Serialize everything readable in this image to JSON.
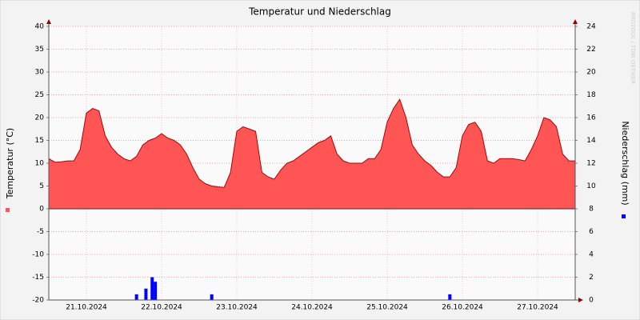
{
  "chart_data": {
    "type": "area",
    "title": "Temperatur und Niederschlag",
    "y_label": "Temperatur (°C)",
    "y2_label": "Niederschlag (mm)",
    "watermark": "RRDTOOL / TOBI OETIKER",
    "xlim": [
      0,
      168
    ],
    "xticks": [
      {
        "value": 12,
        "label": "21.10.2024"
      },
      {
        "value": 36,
        "label": "22.10.2024"
      },
      {
        "value": 60,
        "label": "23.10.2024"
      },
      {
        "value": 84,
        "label": "24.10.2024"
      },
      {
        "value": 108,
        "label": "25.10.2024"
      },
      {
        "value": 132,
        "label": "26.10.2024"
      },
      {
        "value": 156,
        "label": "27.10.2024"
      }
    ],
    "ylim": [
      -20,
      40
    ],
    "yticks": [
      -20,
      -15,
      -10,
      -5,
      0,
      5,
      10,
      15,
      20,
      25,
      30,
      35,
      40
    ],
    "y2lim": [
      0,
      24
    ],
    "y2ticks": [
      0,
      2,
      4,
      6,
      8,
      10,
      12,
      14,
      16,
      18,
      20,
      22,
      24
    ],
    "grid": true,
    "series": [
      {
        "type": "area",
        "color": "#ff5555",
        "line_color": "#b40000",
        "x": [
          0,
          2,
          4,
          6,
          8,
          10,
          12,
          14,
          16,
          18,
          20,
          22,
          24,
          26,
          28,
          30,
          32,
          34,
          36,
          38,
          40,
          42,
          44,
          46,
          48,
          50,
          52,
          54,
          56,
          58,
          60,
          62,
          64,
          66,
          68,
          70,
          72,
          74,
          76,
          78,
          80,
          82,
          84,
          86,
          88,
          90,
          92,
          94,
          96,
          98,
          100,
          102,
          104,
          106,
          108,
          110,
          112,
          114,
          116,
          118,
          120,
          122,
          124,
          126,
          128,
          130,
          132,
          134,
          136,
          138,
          140,
          142,
          144,
          146,
          148,
          150,
          152,
          154,
          156,
          158,
          160,
          162,
          164,
          166,
          168
        ],
        "values": [
          11,
          10.2,
          10.3,
          10.5,
          10.5,
          13,
          21,
          22,
          21.5,
          16,
          13.5,
          12,
          11,
          10.5,
          11.5,
          14,
          15,
          15.5,
          16.5,
          15.5,
          15,
          14,
          12,
          9,
          6.5,
          5.5,
          5,
          4.8,
          4.7,
          8,
          17,
          18,
          17.5,
          17,
          8,
          7,
          6.5,
          8.5,
          10,
          10.5,
          11.5,
          12.5,
          13.5,
          14.5,
          15,
          16,
          12,
          10.5,
          10,
          10,
          10,
          11,
          11,
          13,
          19,
          22,
          24,
          20,
          14,
          12,
          10.5,
          9.5,
          8,
          7,
          7,
          9,
          16,
          18.5,
          19,
          17,
          10.5,
          10,
          11,
          11,
          11,
          10.8,
          10.5,
          13,
          16,
          20,
          19.5,
          18,
          12,
          10.5,
          10.5
        ]
      },
      {
        "type": "bar",
        "axis": "y2",
        "color": "#0000ff",
        "x": [
          28,
          31,
          33,
          34,
          52,
          128
        ],
        "values": [
          0.5,
          1.0,
          2.0,
          1.6,
          0.5,
          0.5
        ]
      }
    ]
  }
}
